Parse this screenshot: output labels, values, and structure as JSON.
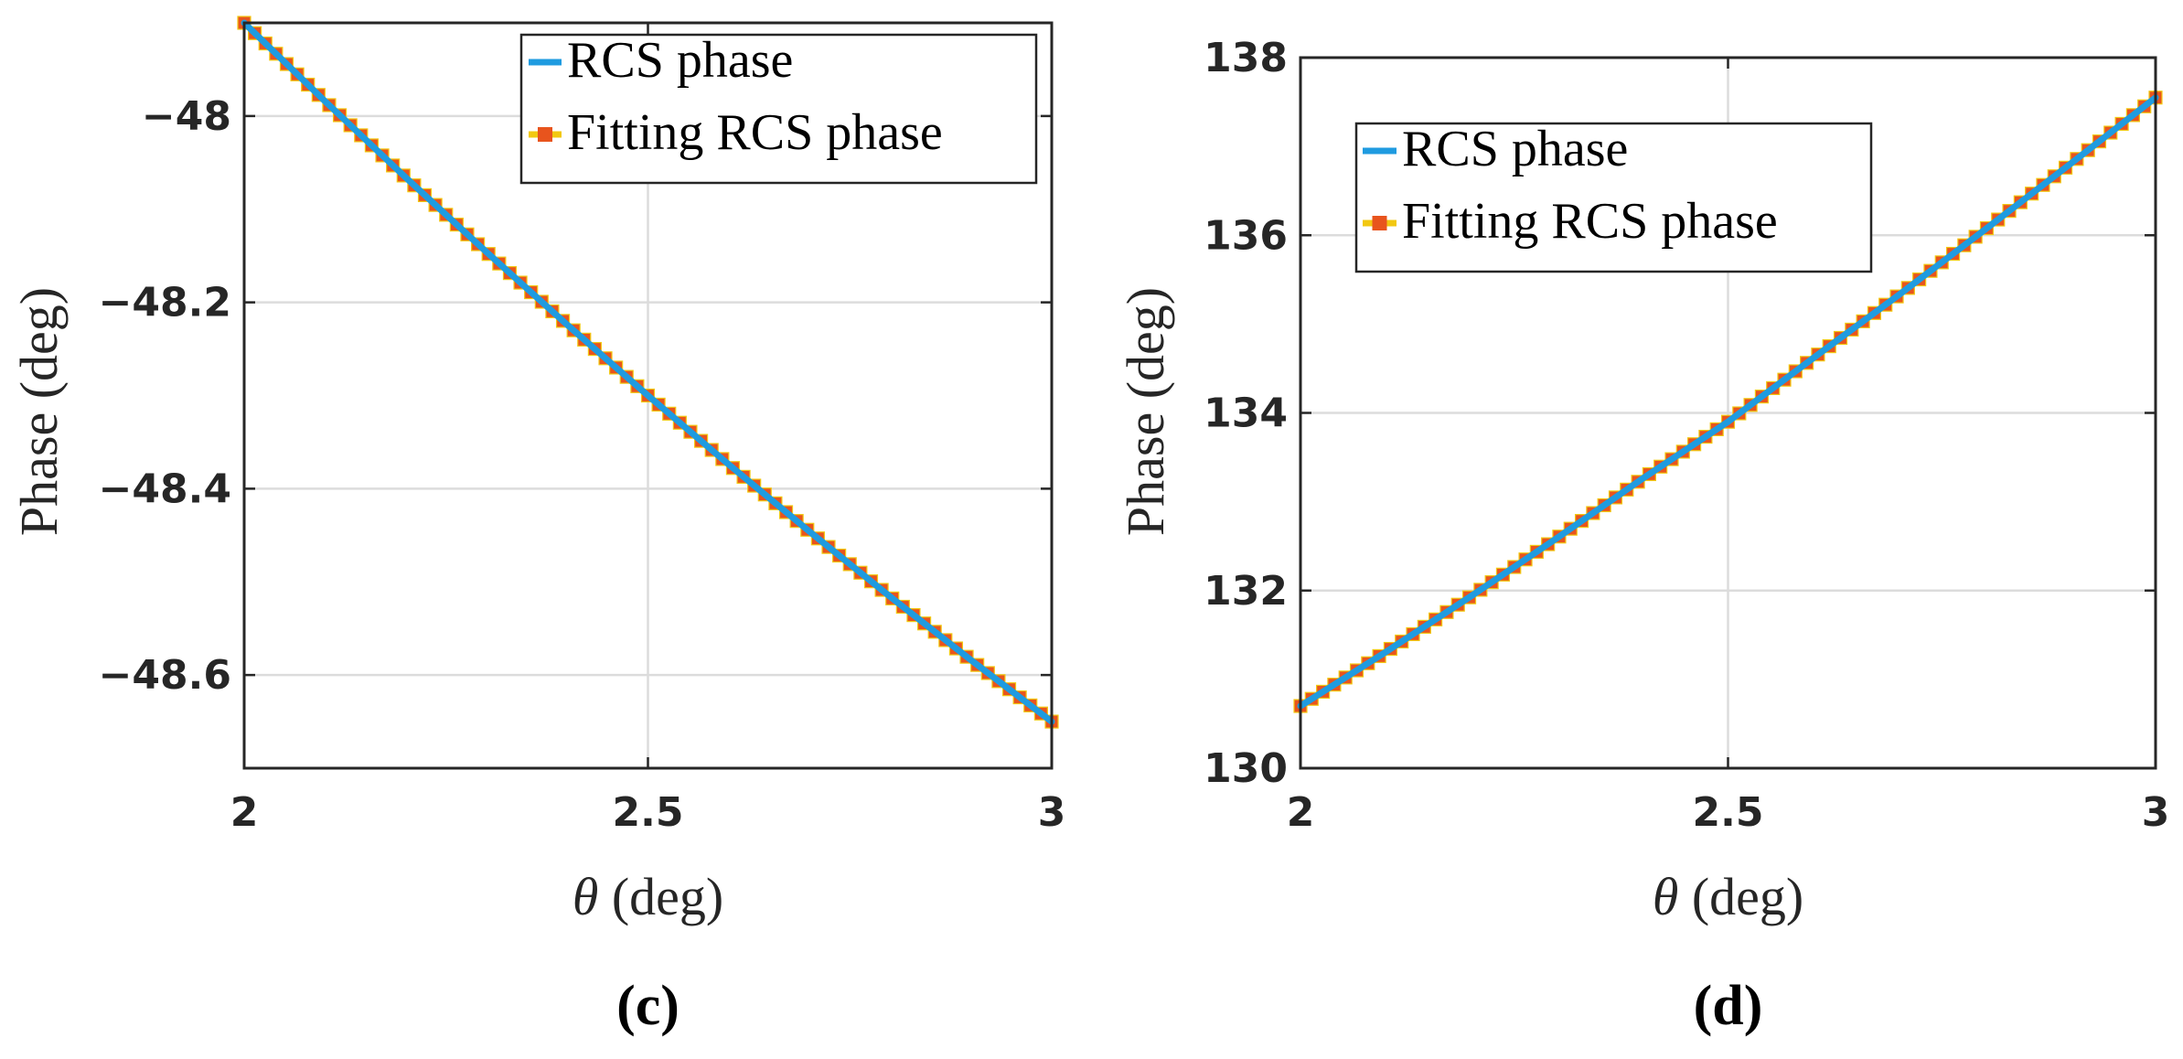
{
  "chart_data": [
    {
      "type": "line",
      "caption": "(c)",
      "title": "",
      "xlabel_symbol": "θ",
      "xlabel_unit": " (deg)",
      "ylabel": "Phase (deg)",
      "xlim": [
        2,
        3
      ],
      "ylim": [
        -48.7,
        -47.9
      ],
      "xticks": [
        2,
        2.5,
        3
      ],
      "xtick_labels": [
        "2",
        "2.5",
        "3"
      ],
      "yticks": [
        -48,
        -48.2,
        -48.4,
        -48.6
      ],
      "ytick_labels": [
        "−48",
        "−48.2",
        "−48.4",
        "−48.6"
      ],
      "grid": true,
      "legend_position": "top-right",
      "x": [
        2.0,
        2.1,
        2.2,
        2.3,
        2.4,
        2.5,
        2.6,
        2.7,
        2.8,
        2.9,
        3.0
      ],
      "series": [
        {
          "name": "RCS phase",
          "style": "line",
          "color": "#1f9be0",
          "values": [
            -47.9,
            -47.984,
            -48.066,
            -48.146,
            -48.224,
            -48.3,
            -48.374,
            -48.446,
            -48.516,
            -48.584,
            -48.65
          ]
        },
        {
          "name": "Fitting RCS phase",
          "style": "square-markers",
          "color": "#e8541d",
          "edge_color": "#f2c811",
          "values": [
            -47.9,
            -47.984,
            -48.066,
            -48.146,
            -48.224,
            -48.3,
            -48.374,
            -48.446,
            -48.516,
            -48.584,
            -48.65
          ]
        }
      ]
    },
    {
      "type": "line",
      "caption": "(d)",
      "title": "",
      "xlabel_symbol": "θ",
      "xlabel_unit": " (deg)",
      "ylabel": "Phase (deg)",
      "xlim": [
        2,
        3
      ],
      "ylim": [
        130,
        138
      ],
      "xticks": [
        2,
        2.5,
        3
      ],
      "xtick_labels": [
        "2",
        "2.5",
        "3"
      ],
      "yticks": [
        130,
        132,
        134,
        136,
        138
      ],
      "ytick_labels": [
        "130",
        "132",
        "134",
        "136",
        "138"
      ],
      "grid": true,
      "legend_position": "top-left",
      "x": [
        2.0,
        2.1,
        2.2,
        2.3,
        2.4,
        2.5,
        2.6,
        2.7,
        2.8,
        2.9,
        3.0
      ],
      "series": [
        {
          "name": "RCS phase",
          "style": "line",
          "color": "#1f9be0",
          "values": [
            130.7,
            131.31,
            131.94,
            132.59,
            133.26,
            133.9,
            134.62,
            135.33,
            136.06,
            136.8,
            137.55
          ]
        },
        {
          "name": "Fitting RCS phase",
          "style": "square-markers",
          "color": "#e8541d",
          "edge_color": "#f2c811",
          "values": [
            130.7,
            131.31,
            131.94,
            132.59,
            133.26,
            133.9,
            134.62,
            135.33,
            136.06,
            136.8,
            137.55
          ]
        }
      ]
    }
  ]
}
